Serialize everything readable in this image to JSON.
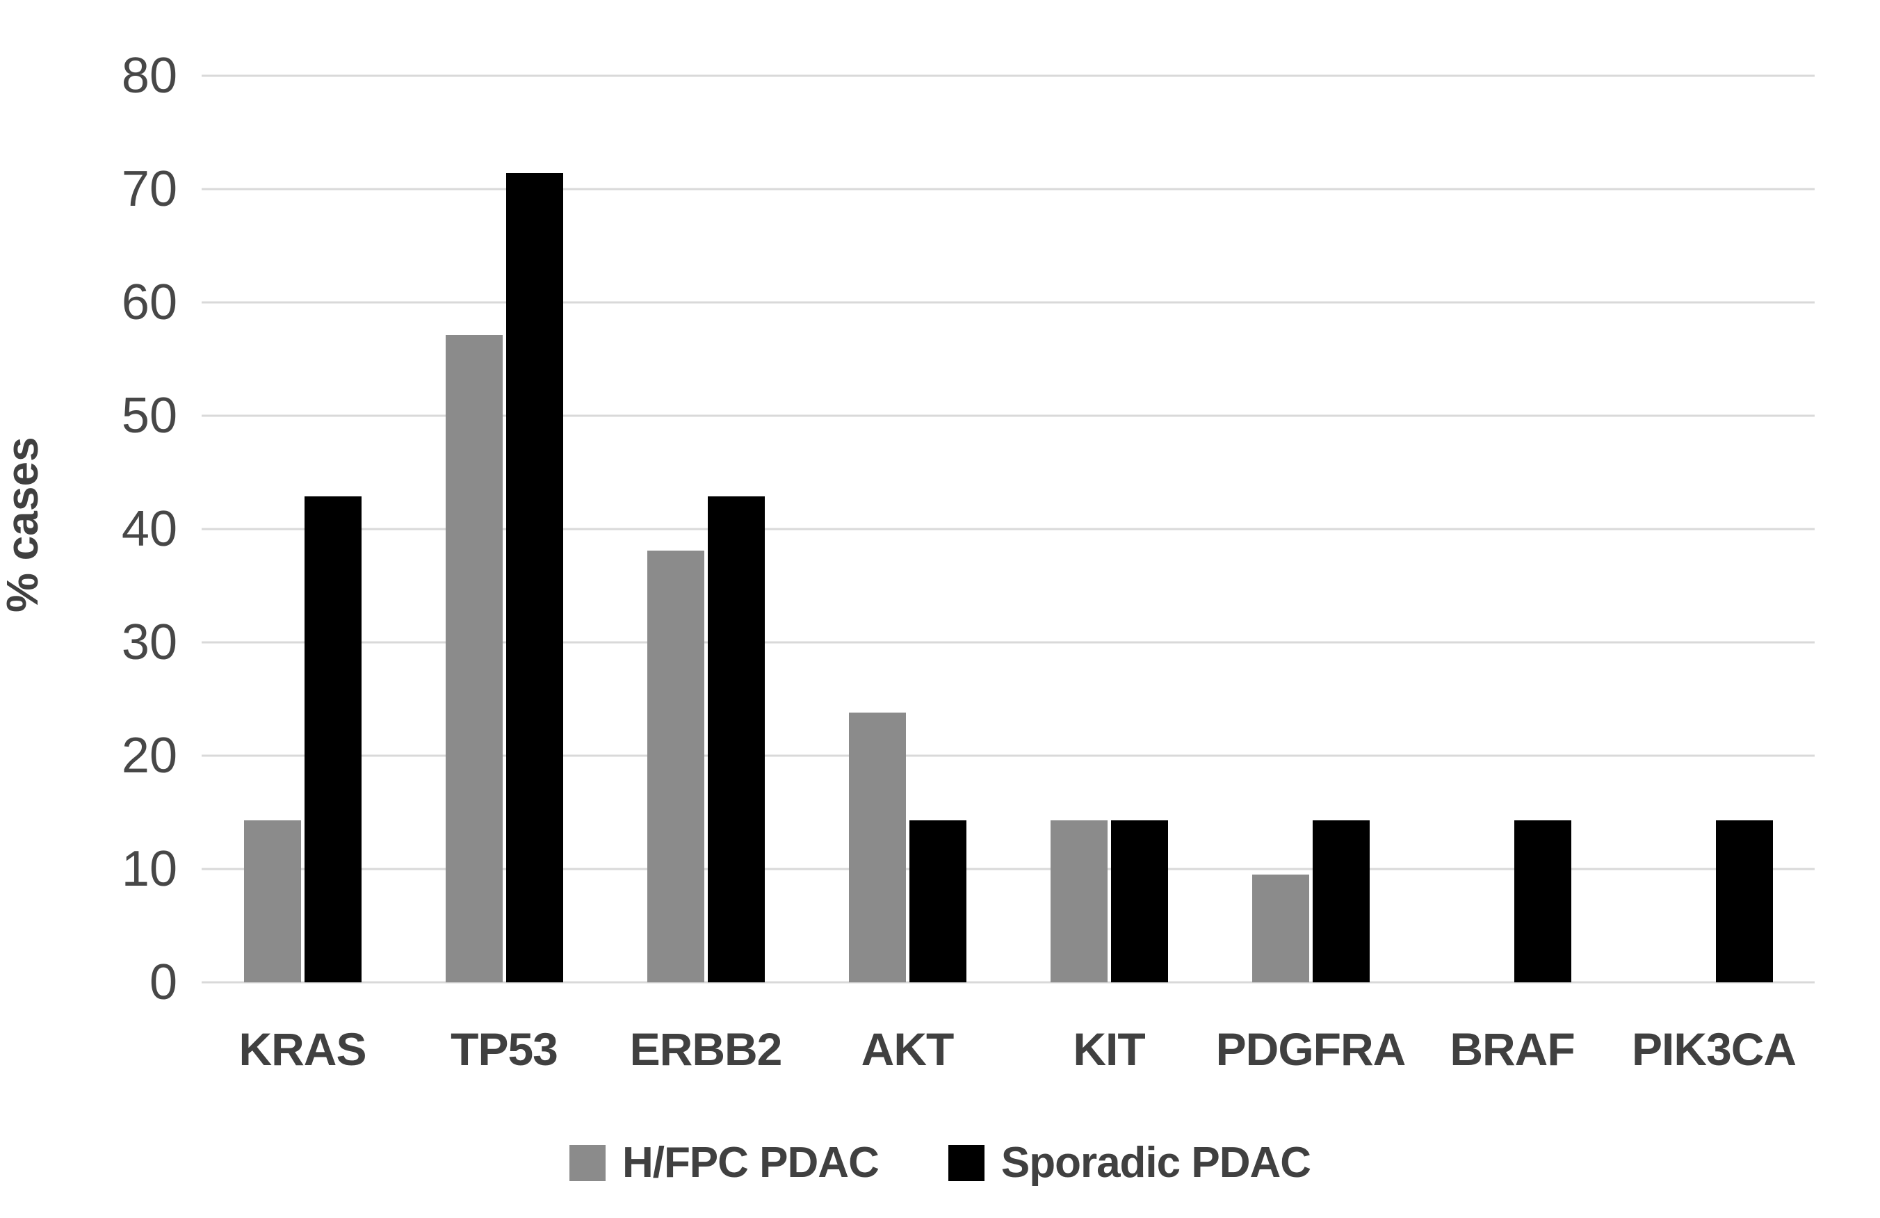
{
  "chart_data": {
    "type": "bar",
    "title": "",
    "xlabel": "",
    "ylabel": "% cases",
    "ylim": [
      0,
      80
    ],
    "yticks": [
      0,
      10,
      20,
      30,
      40,
      50,
      60,
      70,
      80
    ],
    "grid": "horizontal",
    "legend_position": "bottom",
    "categories": [
      "KRAS",
      "TP53",
      "ERBB2",
      "AKT",
      "KIT",
      "PDGFRA",
      "BRAF",
      "PIK3CA"
    ],
    "series": [
      {
        "name": "H/FPC PDAC",
        "color": "#8b8b8b",
        "values": [
          14.3,
          57.1,
          38.1,
          23.8,
          14.3,
          9.5,
          0,
          0
        ]
      },
      {
        "name": "Sporadic PDAC",
        "color": "#000000",
        "values": [
          42.9,
          71.4,
          42.9,
          14.3,
          14.3,
          14.3,
          14.3,
          14.3
        ]
      }
    ]
  },
  "colors": {
    "background": "#ffffff",
    "gridline": "#d9d9d9",
    "axis_text": "#474747",
    "label_text": "#404040"
  }
}
